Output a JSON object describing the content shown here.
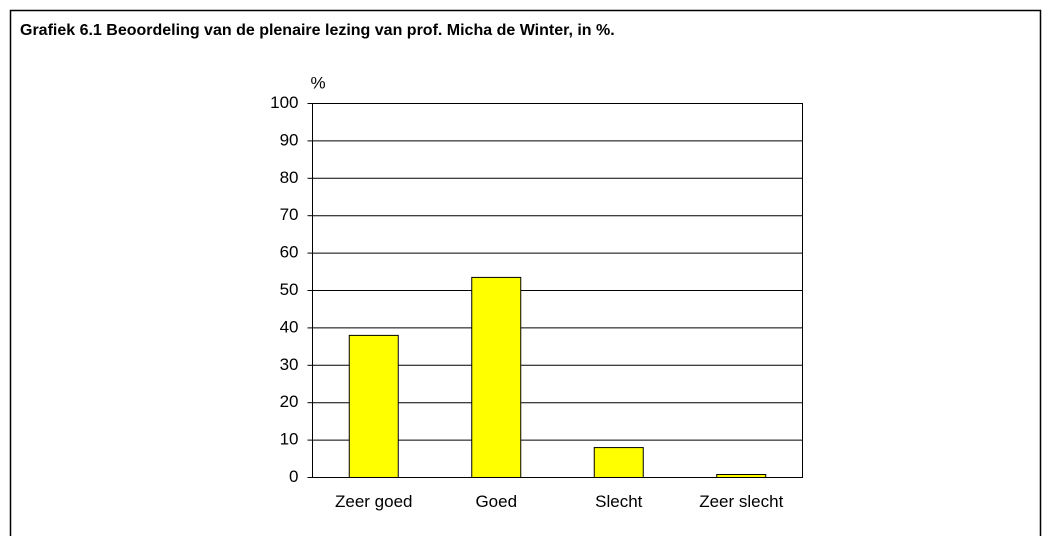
{
  "chart_data": {
    "type": "bar",
    "title": "Grafiek 6.1  Beoordeling van de plenaire lezing van prof. Micha de Winter, in %.",
    "y_label": "%",
    "categories": [
      "Zeer goed",
      "Goed",
      "Slecht",
      "Zeer slecht"
    ],
    "values": [
      38,
      53.5,
      8,
      0.8
    ],
    "color": "#ffff00",
    "ylim": [
      0,
      100
    ],
    "yticks": [
      0,
      10,
      20,
      30,
      40,
      50,
      60,
      70,
      80,
      90,
      100
    ],
    "grid": true
  }
}
